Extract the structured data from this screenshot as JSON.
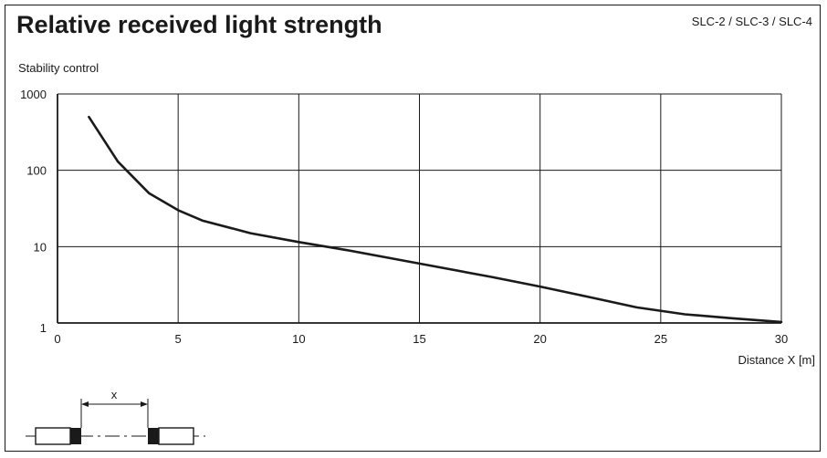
{
  "header": {
    "title": "Relative received light strength",
    "models": "SLC-2 / SLC-3 / SLC-4"
  },
  "chart_data": {
    "type": "line",
    "title": "Relative received light strength",
    "ylabel": "Stability control",
    "xlabel": "Distance X [m]",
    "xlim": [
      0,
      30
    ],
    "ylim": [
      1,
      1000
    ],
    "yscale": "log",
    "x_ticks": [
      0,
      5,
      10,
      15,
      20,
      25,
      30
    ],
    "y_ticks": [
      1,
      10,
      100,
      1000
    ],
    "grid": true,
    "line_color": "#1a1a1a",
    "series": [
      {
        "x": [
          1.3,
          2.5,
          3.8,
          5.0,
          6.0,
          8.0,
          10.0,
          12.0,
          15.0,
          18.0,
          20.0,
          22.0,
          24.0,
          26.0,
          28.0,
          30.0
        ],
        "values": [
          500,
          130,
          50,
          30,
          22,
          15,
          11.5,
          9,
          6,
          4,
          3,
          2.2,
          1.6,
          1.3,
          1.15,
          1.03
        ]
      }
    ]
  },
  "diagram": {
    "distance_label": "x"
  }
}
